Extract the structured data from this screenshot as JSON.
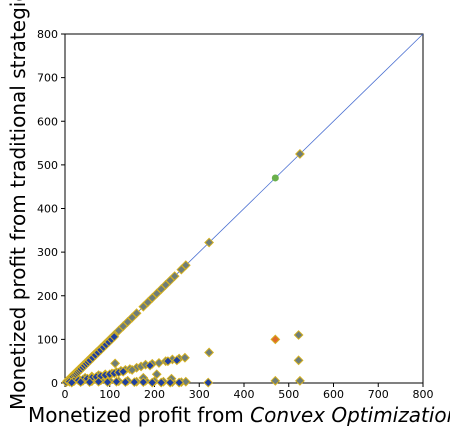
{
  "chart_data": {
    "type": "scatter",
    "xlabel_prefix": "Monetized profit from ",
    "xlabel_emph": "Convex Optimization",
    "ylabel": "Monetized profit from traditional strategies",
    "xlim": [
      0,
      800
    ],
    "ylim": [
      0,
      800
    ],
    "xticks": [
      "0",
      "100",
      "200",
      "300",
      "400",
      "500",
      "600",
      "700",
      "800"
    ],
    "yticks": [
      "0",
      "100",
      "200",
      "300",
      "400",
      "500",
      "600",
      "700",
      "800"
    ],
    "grid": false,
    "reference_line": {
      "from": [
        0,
        0
      ],
      "to": [
        800,
        800
      ],
      "color": "#4a6fd1"
    },
    "colors": {
      "diamond_edge": "#d4b020",
      "diamond_fill": "#6e7d78",
      "blue_fill": "#1f3f9e",
      "green_circle": "#6ab04c",
      "orange_diamond": "#e06a2a"
    },
    "series": [
      {
        "marker": "diamond",
        "color": "#6e7d78",
        "points": [
          [
            5,
            5
          ],
          [
            10,
            10
          ],
          [
            15,
            15
          ],
          [
            20,
            20
          ],
          [
            25,
            25
          ],
          [
            30,
            30
          ],
          [
            35,
            35
          ],
          [
            40,
            40
          ],
          [
            45,
            45
          ],
          [
            50,
            50
          ],
          [
            55,
            55
          ],
          [
            60,
            60
          ],
          [
            65,
            65
          ],
          [
            70,
            70
          ],
          [
            80,
            80
          ],
          [
            90,
            90
          ],
          [
            100,
            100
          ],
          [
            110,
            110
          ],
          [
            120,
            120
          ],
          [
            130,
            130
          ],
          [
            140,
            140
          ],
          [
            150,
            150
          ],
          [
            160,
            160
          ],
          [
            175,
            175
          ],
          [
            185,
            185
          ],
          [
            195,
            195
          ],
          [
            205,
            205
          ],
          [
            215,
            215
          ],
          [
            225,
            225
          ],
          [
            235,
            235
          ],
          [
            245,
            245
          ],
          [
            260,
            260
          ],
          [
            270,
            270
          ],
          [
            322,
            322
          ],
          [
            525,
            525
          ],
          [
            30,
            10
          ],
          [
            45,
            12
          ],
          [
            60,
            15
          ],
          [
            75,
            18
          ],
          [
            90,
            20
          ],
          [
            105,
            22
          ],
          [
            115,
            25
          ],
          [
            125,
            28
          ],
          [
            135,
            30
          ],
          [
            145,
            32
          ],
          [
            160,
            35
          ],
          [
            170,
            38
          ],
          [
            180,
            42
          ],
          [
            195,
            44
          ],
          [
            210,
            46
          ],
          [
            225,
            50
          ],
          [
            240,
            54
          ],
          [
            255,
            56
          ],
          [
            268,
            58
          ],
          [
            322,
            70
          ],
          [
            522,
            110
          ],
          [
            522,
            52
          ],
          [
            40,
            5
          ],
          [
            60,
            4
          ],
          [
            80,
            6
          ],
          [
            100,
            5
          ],
          [
            120,
            4
          ],
          [
            140,
            5
          ],
          [
            160,
            3
          ],
          [
            180,
            5
          ],
          [
            200,
            4
          ],
          [
            220,
            3
          ],
          [
            240,
            2
          ],
          [
            260,
            2
          ],
          [
            112,
            45
          ],
          [
            150,
            30
          ],
          [
            175,
            12
          ],
          [
            205,
            20
          ],
          [
            238,
            10
          ],
          [
            270,
            3
          ],
          [
            470,
            5
          ],
          [
            525,
            5
          ]
        ]
      },
      {
        "marker": "diamond",
        "color": "#1f3f9e",
        "points": [
          [
            3,
            2
          ],
          [
            6,
            5
          ],
          [
            9,
            7
          ],
          [
            12,
            10
          ],
          [
            15,
            12
          ],
          [
            18,
            15
          ],
          [
            21,
            18
          ],
          [
            24,
            20
          ],
          [
            27,
            23
          ],
          [
            30,
            26
          ],
          [
            33,
            29
          ],
          [
            36,
            32
          ],
          [
            40,
            36
          ],
          [
            44,
            40
          ],
          [
            48,
            44
          ],
          [
            52,
            48
          ],
          [
            56,
            52
          ],
          [
            62,
            58
          ],
          [
            68,
            64
          ],
          [
            74,
            70
          ],
          [
            80,
            76
          ],
          [
            86,
            82
          ],
          [
            92,
            88
          ],
          [
            98,
            94
          ],
          [
            104,
            100
          ],
          [
            110,
            106
          ],
          [
            10,
            3
          ],
          [
            20,
            4
          ],
          [
            30,
            6
          ],
          [
            40,
            8
          ],
          [
            50,
            10
          ],
          [
            60,
            12
          ],
          [
            70,
            14
          ],
          [
            80,
            16
          ],
          [
            90,
            18
          ],
          [
            100,
            20
          ],
          [
            110,
            22
          ],
          [
            120,
            24
          ],
          [
            130,
            26
          ],
          [
            15,
            1
          ],
          [
            35,
            2
          ],
          [
            55,
            2
          ],
          [
            75,
            3
          ],
          [
            95,
            2
          ],
          [
            115,
            3
          ],
          [
            135,
            2
          ],
          [
            155,
            2
          ],
          [
            175,
            2
          ],
          [
            195,
            1
          ],
          [
            215,
            1
          ],
          [
            235,
            1
          ],
          [
            255,
            1
          ],
          [
            320,
            1
          ],
          [
            190,
            40
          ],
          [
            230,
            50
          ],
          [
            250,
            52
          ]
        ]
      },
      {
        "marker": "circle",
        "color": "#6ab04c",
        "points": [
          [
            470,
            470
          ]
        ]
      },
      {
        "marker": "diamond",
        "color": "#e06a2a",
        "points": [
          [
            470,
            100
          ]
        ]
      }
    ]
  }
}
